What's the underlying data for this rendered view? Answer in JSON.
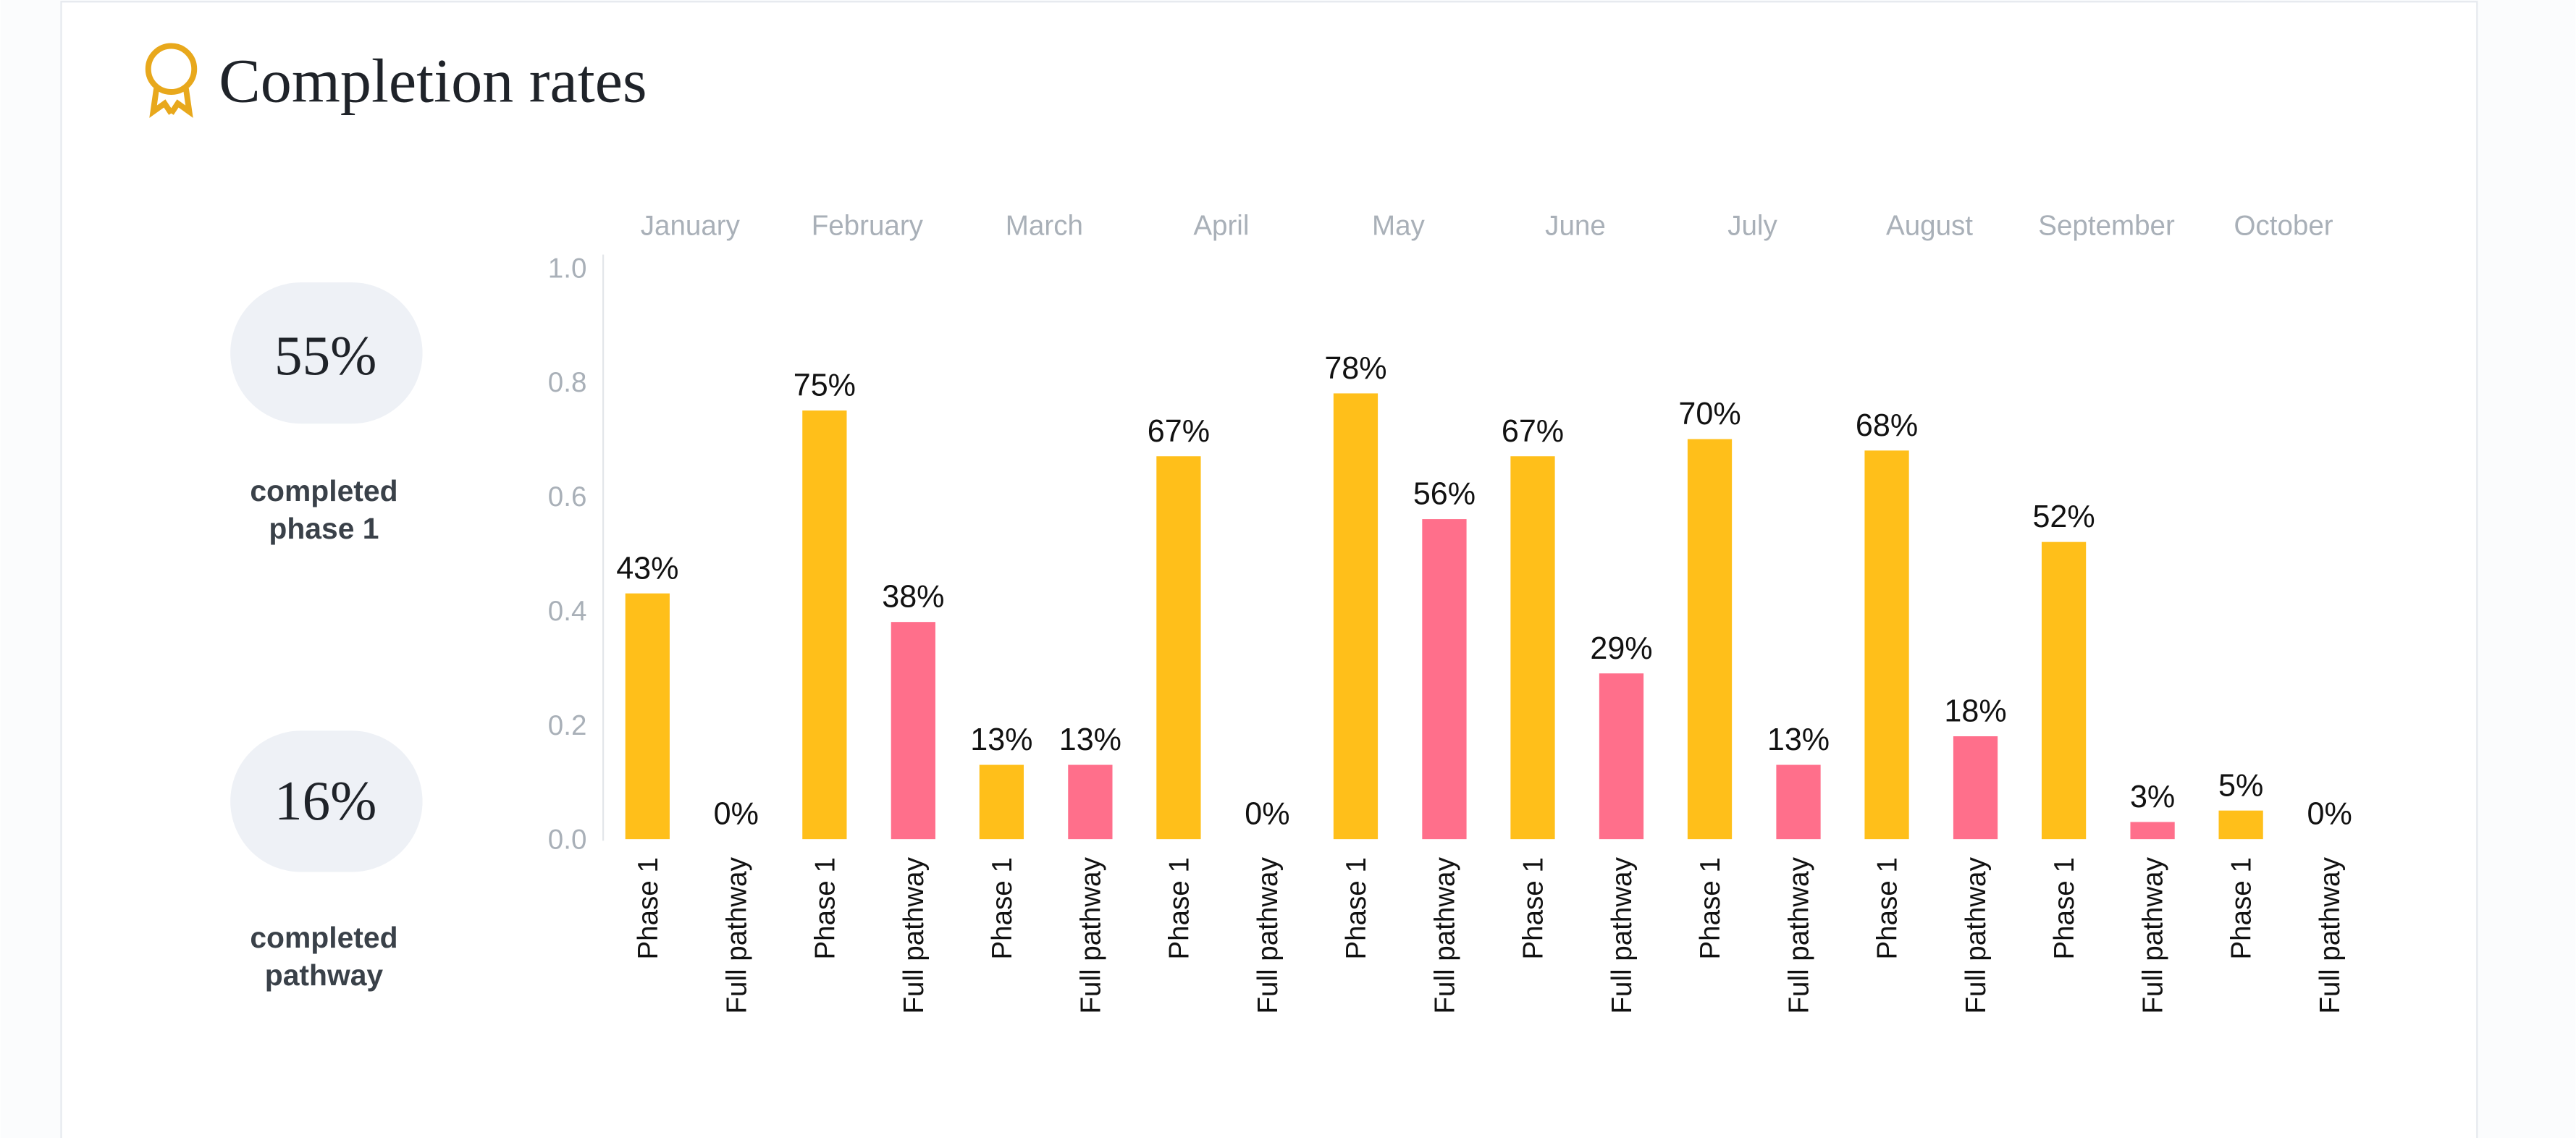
{
  "header": {
    "title": "Completion rates"
  },
  "stats": [
    {
      "value": "55%",
      "label_lines": [
        "completed",
        "phase 1"
      ]
    },
    {
      "value": "16%",
      "label_lines": [
        "completed",
        "pathway"
      ]
    }
  ],
  "chart_data": {
    "type": "bar",
    "categories": [
      "January",
      "February",
      "March",
      "April",
      "May",
      "June",
      "July",
      "August",
      "September",
      "October"
    ],
    "series": [
      {
        "name": "Phase 1",
        "color": "#ffbf1a",
        "values": [
          0.43,
          0.75,
          0.13,
          0.67,
          0.78,
          0.67,
          0.7,
          0.68,
          0.52,
          0.05
        ],
        "value_labels": [
          "43%",
          "75%",
          "13%",
          "67%",
          "78%",
          "67%",
          "70%",
          "68%",
          "52%",
          "5%"
        ]
      },
      {
        "name": "Full pathway",
        "color": "#ff6f8b",
        "values": [
          0,
          0.38,
          0.13,
          0,
          0.56,
          0.29,
          0.13,
          0.18,
          0.03,
          0
        ],
        "value_labels": [
          "0%",
          "38%",
          "13%",
          "0%",
          "56%",
          "29%",
          "13%",
          "18%",
          "3%",
          "0%"
        ]
      }
    ],
    "ylim": [
      0,
      1
    ],
    "yticks": [
      {
        "value": 0,
        "label": "0.0"
      },
      0.2,
      0.4,
      0.6,
      0.8,
      {
        "value": 1,
        "label": "1.0"
      }
    ],
    "grid": false
  }
}
